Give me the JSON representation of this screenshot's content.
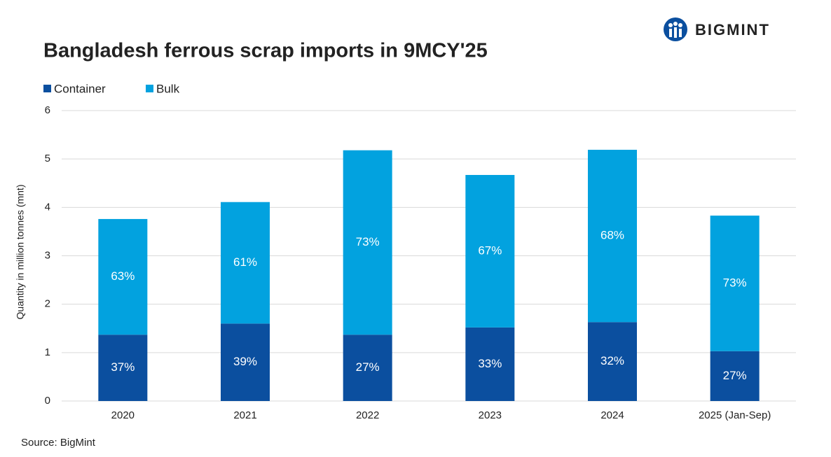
{
  "logo": "BIGMINT",
  "chart_data": {
    "type": "stacked_bar",
    "title": "Bangladesh ferrous scrap imports in 9MCY'25",
    "y_label": "Quantity in million tonnes (mnt)",
    "source": "Source: BigMint",
    "categories": [
      "2020",
      "2021",
      "2022",
      "2023",
      "2024",
      "2025 (Jan-Sep)"
    ],
    "series": [
      {
        "name": "Container",
        "color": "#0b4f9f",
        "values": [
          1.37,
          1.6,
          1.37,
          1.52,
          1.63,
          1.03
        ],
        "share_labels": [
          "37%",
          "39%",
          "27%",
          "33%",
          "32%",
          "27%"
        ]
      },
      {
        "name": "Bulk",
        "color": "#02a2df",
        "values": [
          2.39,
          2.51,
          3.81,
          3.15,
          3.56,
          2.8
        ],
        "share_labels": [
          "63%",
          "61%",
          "73%",
          "67%",
          "68%",
          "73%"
        ]
      }
    ],
    "ylim": [
      0,
      6
    ],
    "yticks": [
      0,
      1,
      2,
      3,
      4,
      5,
      6
    ],
    "grid": true,
    "legend": "top-left"
  }
}
